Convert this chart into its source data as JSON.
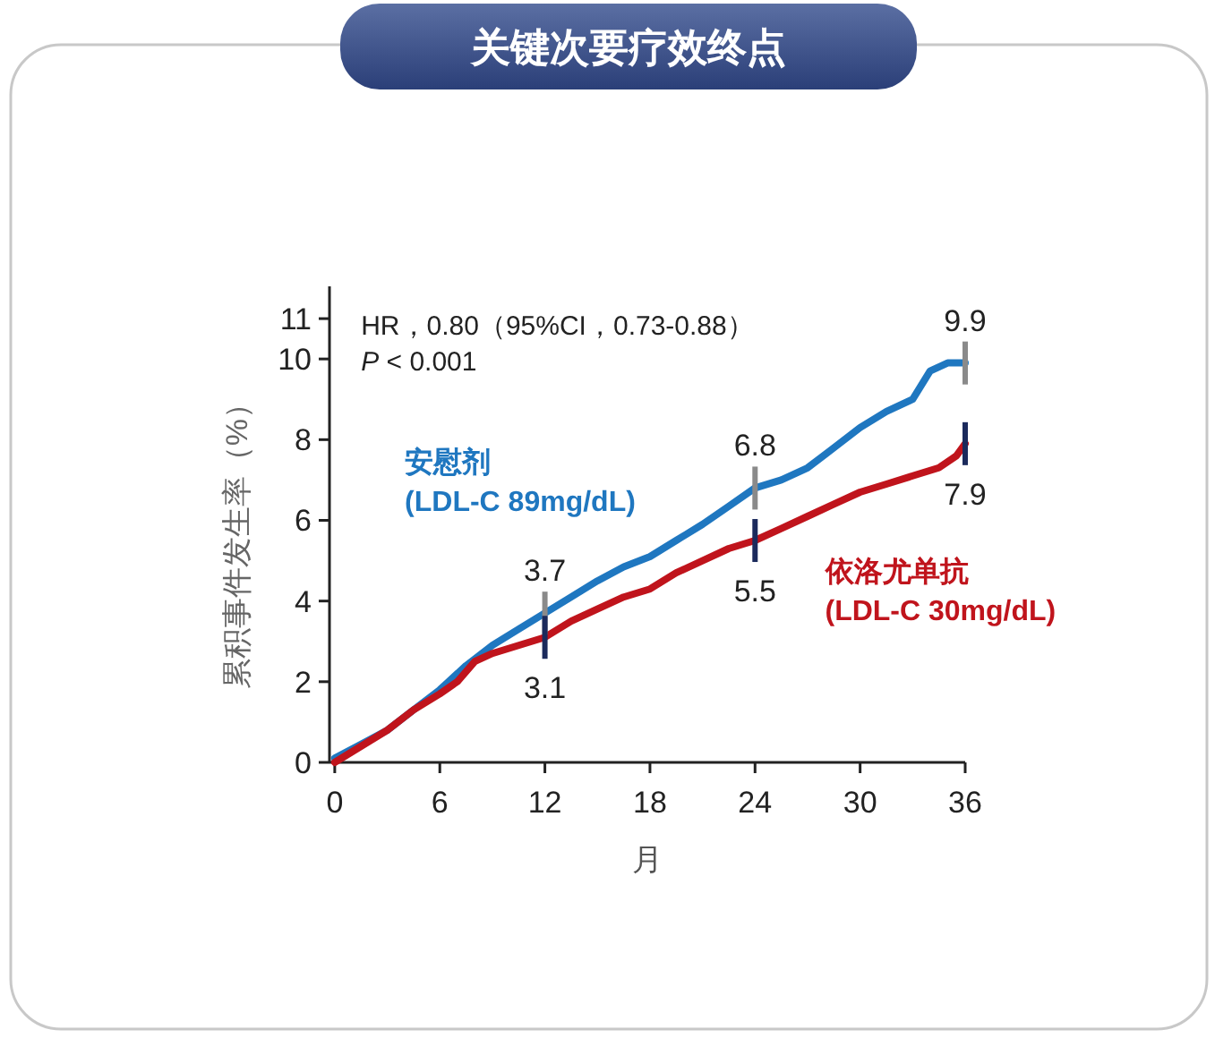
{
  "chart_data": {
    "type": "line",
    "title": "关键次要疗效终点",
    "xlabel": "月",
    "ylabel": "累积事件发生率（%）",
    "xlim": [
      -0.3,
      36
    ],
    "xticks": [
      0,
      6,
      12,
      18,
      24,
      30,
      36
    ],
    "ylim": [
      0,
      11.8
    ],
    "yticks": [
      0,
      2,
      4,
      6,
      8,
      10,
      11
    ],
    "grid": false,
    "legend": false,
    "marker": "none",
    "line_style": "solid",
    "series": [
      {
        "name": "安慰剂\n(LDL-C 89mg/dL)",
        "color": "#1f77c0",
        "x": [
          0,
          1.5,
          3,
          4.5,
          6,
          7.5,
          9,
          10.5,
          12,
          13.5,
          15,
          16.5,
          18,
          19.5,
          21,
          22.5,
          24,
          25.5,
          27,
          28.5,
          30,
          31.5,
          33,
          34,
          35,
          36
        ],
        "values": [
          0.1,
          0.45,
          0.8,
          1.3,
          1.8,
          2.4,
          2.9,
          3.3,
          3.7,
          4.1,
          4.5,
          4.85,
          5.1,
          5.5,
          5.9,
          6.35,
          6.8,
          7.0,
          7.3,
          7.8,
          8.3,
          8.7,
          9.0,
          9.7,
          9.9,
          9.9
        ]
      },
      {
        "name": "依洛尤单抗\n(LDL-C 30mg/dL)",
        "color": "#c0141c",
        "x": [
          0,
          1.5,
          3,
          4.5,
          6,
          7,
          8,
          9,
          10.5,
          12,
          13.5,
          15,
          16.5,
          18,
          19.5,
          21,
          22.5,
          24,
          25.5,
          27,
          28.5,
          30,
          31.5,
          33,
          34.5,
          35.5,
          36
        ],
        "values": [
          0,
          0.4,
          0.8,
          1.3,
          1.7,
          2.0,
          2.5,
          2.7,
          2.9,
          3.1,
          3.5,
          3.8,
          4.1,
          4.3,
          4.7,
          5.0,
          5.3,
          5.5,
          5.8,
          6.1,
          6.4,
          6.7,
          6.9,
          7.1,
          7.3,
          7.6,
          7.9
        ]
      }
    ],
    "annotations": [
      "HR，0.80（95%CI，0.73-0.88）",
      "P < 0.001",
      {
        "text": "3.7",
        "x": 12,
        "y": 3.7
      },
      {
        "text": "3.1",
        "x": 12,
        "y": 3.1
      },
      {
        "text": "6.8",
        "x": 24,
        "y": 6.8
      },
      {
        "text": "5.5",
        "x": 24,
        "y": 5.5
      },
      {
        "text": "9.9",
        "x": 36,
        "y": 9.9
      },
      {
        "text": "7.9",
        "x": 36,
        "y": 7.9
      }
    ]
  }
}
